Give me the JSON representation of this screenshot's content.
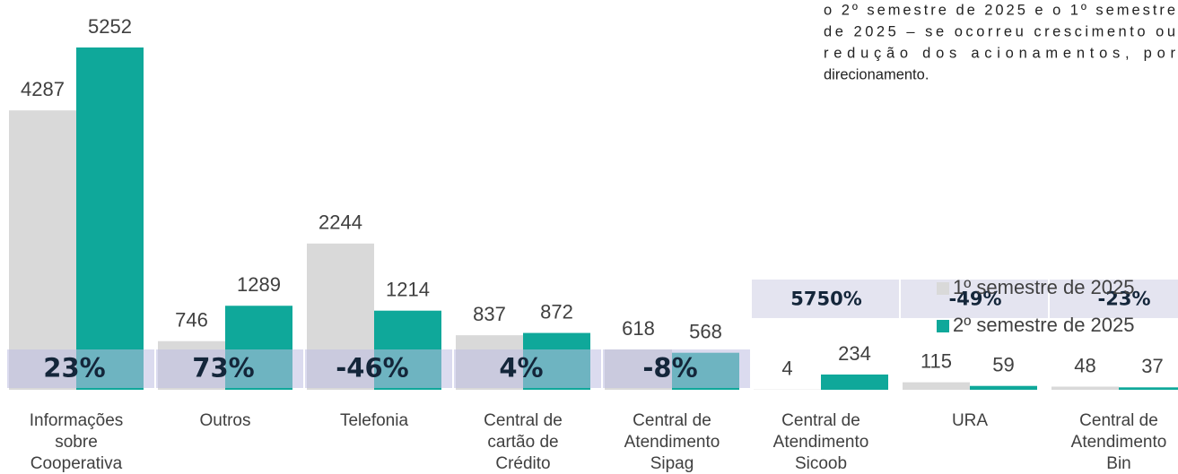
{
  "chart_data": {
    "type": "bar",
    "note_lines": [
      "o 2º semestre de 2025 e o 1º semestre",
      "de 2025 – se ocorreu crescimento ou",
      "redução dos acionamentos, por",
      "direcionamento."
    ],
    "categories": [
      [
        "Informações",
        "sobre",
        "Cooperativa"
      ],
      [
        "Outros"
      ],
      [
        "Telefonia"
      ],
      [
        "Central de",
        "cartão de",
        "Crédito"
      ],
      [
        "Central de",
        "Atendimento",
        "Sipag"
      ],
      [
        "Central de",
        "Atendimento",
        "Sicoob"
      ],
      [
        "URA"
      ],
      [
        "Central de",
        "Atendimento",
        "Bin"
      ]
    ],
    "series": [
      {
        "name": "1º semestre de 2025",
        "color": "#d9d9d9",
        "values": [
          4287,
          746,
          2244,
          837,
          618,
          4,
          115,
          48
        ]
      },
      {
        "name": "2º semestre de 2025",
        "color": "#0fa89a",
        "values": [
          5252,
          1289,
          1214,
          872,
          568,
          234,
          59,
          37
        ]
      }
    ],
    "change_labels": [
      "23%",
      "73%",
      "-46%",
      "4%",
      "-8%",
      "5750%",
      "-49%",
      "-23%"
    ],
    "ylim": [
      0,
      6000
    ]
  }
}
